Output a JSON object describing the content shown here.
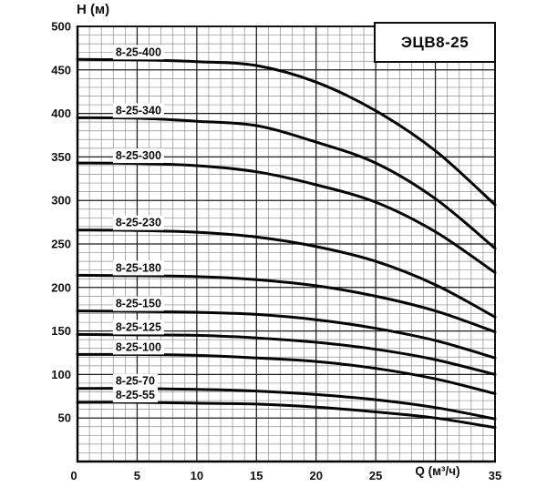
{
  "chart_data": {
    "type": "line",
    "title": "ЭЦВ8-25",
    "xlabel": "Q (м³/ч)",
    "ylabel": "Н (м)",
    "xlim": [
      0,
      35
    ],
    "ylim": [
      0,
      500
    ],
    "x_minor_step": 1,
    "x_major_step": 5,
    "y_minor_step": 10,
    "y_major_step": 50,
    "grid": true,
    "legend_position": "inline-curve-labels",
    "origin_tick_label": "0",
    "x_tick_labels": [
      5,
      10,
      15,
      20,
      25,
      35
    ],
    "y_tick_labels": [
      50,
      100,
      150,
      200,
      250,
      300,
      350,
      400,
      450,
      500
    ],
    "q_samples": [
      0,
      5,
      10,
      15,
      20,
      25,
      30,
      35
    ],
    "series": [
      {
        "name": "8-25-400",
        "values": [
          462,
          461.5,
          459.5,
          455,
          436,
          403,
          357,
          295
        ]
      },
      {
        "name": "8-25-340",
        "values": [
          395,
          394.5,
          391,
          386,
          367,
          343,
          302,
          245
        ]
      },
      {
        "name": "8-25-300",
        "values": [
          343,
          342.5,
          340,
          333,
          318,
          298,
          264,
          217
        ]
      },
      {
        "name": "8-25-230",
        "values": [
          266,
          265.5,
          263.5,
          258,
          247,
          230,
          203,
          166
        ]
      },
      {
        "name": "8-25-180",
        "values": [
          214,
          213.5,
          212.5,
          209,
          202,
          190,
          173,
          149
        ]
      },
      {
        "name": "8-25-150",
        "values": [
          173,
          172.5,
          171.5,
          169,
          163,
          153,
          139,
          119
        ]
      },
      {
        "name": "8-25-125",
        "values": [
          146,
          145.5,
          145,
          142,
          137,
          129,
          117,
          100
        ]
      },
      {
        "name": "8-25-100",
        "values": [
          123,
          123,
          122,
          119,
          115,
          107,
          95,
          78
        ]
      },
      {
        "name": "8-25-70",
        "values": [
          84,
          84,
          83,
          81,
          77,
          71,
          62,
          49
        ]
      },
      {
        "name": "8-25-55",
        "values": [
          68,
          68,
          67,
          66,
          62.5,
          57,
          50,
          39
        ]
      }
    ],
    "label_q_start": 3.2
  }
}
